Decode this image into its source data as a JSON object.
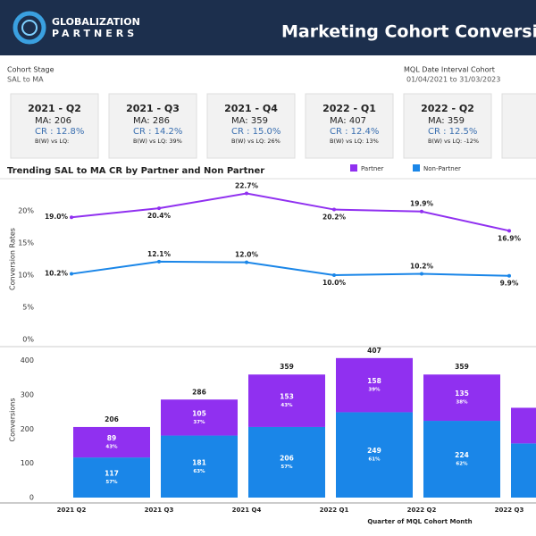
{
  "header": {
    "logo_top": "GLOBALIZATION",
    "logo_bottom": "PARTNERS",
    "title": "Marketing Cohort Conversion Rates"
  },
  "filters": [
    {
      "label": "Cohort Stage",
      "value": "SAL to MA"
    },
    {
      "label": "MQL Date Interval Cohort",
      "value": "01/04/2021 to 31/03/2023"
    }
  ],
  "cards": [
    {
      "title": "2021 - Q2",
      "ma": "MA: 206",
      "cr": "CR : 12.8%",
      "lq": "B(W) vs LQ:"
    },
    {
      "title": "2021 - Q3",
      "ma": "MA: 286",
      "cr": "CR : 14.2%",
      "lq": "B(W) vs LQ: 39%"
    },
    {
      "title": "2021 - Q4",
      "ma": "MA: 359",
      "cr": "CR : 15.0%",
      "lq": "B(W) vs LQ: 26%"
    },
    {
      "title": "2022 - Q1",
      "ma": "MA: 407",
      "cr": "CR : 12.4%",
      "lq": "B(W) vs LQ: 13%"
    },
    {
      "title": "2022 - Q2",
      "ma": "MA: 359",
      "cr": "CR : 12.5%",
      "lq": "B(W) vs LQ: -12%"
    }
  ],
  "chart_data": [
    {
      "type": "line",
      "title": "Trending SAL to MA CR by Partner and Non Partner",
      "y_label": "Conversion Rates",
      "categories": [
        "2021 Q2",
        "2021 Q3",
        "2021 Q4",
        "2022 Q1",
        "2022 Q2",
        "2022 Q3"
      ],
      "series": [
        {
          "name": "Partner",
          "color": "#9030f0",
          "values": [
            19.0,
            20.4,
            22.7,
            20.2,
            19.9,
            16.9
          ],
          "value_labels": [
            "19.0%",
            "20.4%",
            "22.7%",
            "20.2%",
            "19.9%",
            "16.9%"
          ]
        },
        {
          "name": "Non-Partner",
          "color": "#1a86e8",
          "values": [
            10.2,
            12.1,
            12.0,
            10.0,
            10.2,
            9.9
          ],
          "value_labels": [
            "10.2%",
            "12.1%",
            "12.0%",
            "10.0%",
            "10.2%",
            "9.9%"
          ]
        }
      ],
      "ylim": [
        0,
        25
      ],
      "yticks": [
        {
          "value": 0,
          "label": "0%"
        },
        {
          "value": 5,
          "label": "5%"
        },
        {
          "value": 10,
          "label": "10%"
        },
        {
          "value": 15,
          "label": "15%"
        },
        {
          "value": 20,
          "label": "20%"
        }
      ],
      "grid": false
    },
    {
      "type": "stacked_bar",
      "x_label": "Quarter of MQL Cohort Month",
      "y_label": "Conversions",
      "categories": [
        "2021 Q2",
        "2021 Q3",
        "2021 Q4",
        "2022 Q1",
        "2022 Q2",
        "2022 Q3"
      ],
      "total_labels": [
        "206",
        "286",
        "359",
        "407",
        "359",
        null
      ],
      "series": [
        {
          "color": "#1a86e8",
          "values": [
            117,
            181,
            206,
            249,
            224,
            158
          ],
          "value_labels": [
            "117",
            "181",
            "206",
            "249",
            "224",
            null
          ],
          "share_labels": [
            "57%",
            "63%",
            "57%",
            "61%",
            "62%",
            null
          ]
        },
        {
          "color": "#9030f0",
          "values": [
            89,
            105,
            153,
            158,
            135,
            104
          ],
          "value_labels": [
            "89",
            "105",
            "153",
            "158",
            "135",
            null
          ],
          "share_labels": [
            "43%",
            "37%",
            "43%",
            "39%",
            "38%",
            null
          ]
        }
      ],
      "ylim": [
        0,
        430
      ],
      "yticks": [
        0,
        100,
        200,
        300,
        400
      ]
    }
  ]
}
